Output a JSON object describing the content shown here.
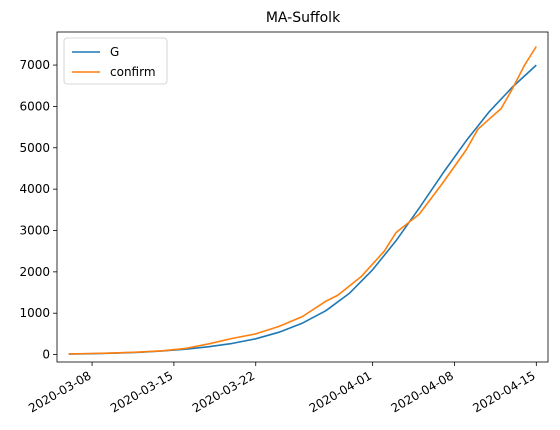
{
  "chart_data": {
    "type": "line",
    "title": "MA-Suffolk",
    "xlabel": "",
    "ylabel": "",
    "x_start": "2020-03-06",
    "xlim": [
      "2020-03-05",
      "2020-04-16"
    ],
    "ylim": [
      -180,
      7800
    ],
    "yticks": [
      0,
      1000,
      2000,
      3000,
      4000,
      5000,
      6000,
      7000
    ],
    "xticks": [
      "2020-03-08",
      "2020-03-15",
      "2020-03-22",
      "2020-04-01",
      "2020-04-08",
      "2020-04-15"
    ],
    "legend": {
      "position": "top-left"
    },
    "grid": false,
    "series": [
      {
        "name": "G",
        "color": "#1f77b4",
        "x": [
          "2020-03-06",
          "2020-03-08",
          "2020-03-10",
          "2020-03-12",
          "2020-03-14",
          "2020-03-16",
          "2020-03-18",
          "2020-03-20",
          "2020-03-22",
          "2020-03-24",
          "2020-03-26",
          "2020-03-28",
          "2020-03-30",
          "2020-04-01",
          "2020-04-03",
          "2020-04-05",
          "2020-04-07",
          "2020-04-09",
          "2020-04-11",
          "2020-04-13",
          "2020-04-15"
        ],
        "values": [
          10,
          20,
          35,
          55,
          85,
          130,
          190,
          270,
          380,
          540,
          760,
          1060,
          1480,
          2050,
          2750,
          3550,
          4380,
          5170,
          5880,
          6480,
          7000
        ]
      },
      {
        "name": "confirm",
        "color": "#ff7f0e",
        "x": [
          "2020-03-06",
          "2020-03-08",
          "2020-03-10",
          "2020-03-12",
          "2020-03-14",
          "2020-03-16",
          "2020-03-18",
          "2020-03-20",
          "2020-03-22",
          "2020-03-24",
          "2020-03-26",
          "2020-03-28",
          "2020-03-29",
          "2020-03-31",
          "2020-04-02",
          "2020-04-03",
          "2020-04-05",
          "2020-04-07",
          "2020-04-09",
          "2020-04-10",
          "2020-04-11",
          "2020-04-12",
          "2020-04-13",
          "2020-04-14",
          "2020-04-15"
        ],
        "values": [
          15,
          25,
          40,
          60,
          90,
          150,
          260,
          390,
          500,
          680,
          920,
          1290,
          1430,
          1880,
          2500,
          2950,
          3400,
          4150,
          4950,
          5450,
          5700,
          5950,
          6450,
          7000,
          7450
        ]
      }
    ]
  }
}
